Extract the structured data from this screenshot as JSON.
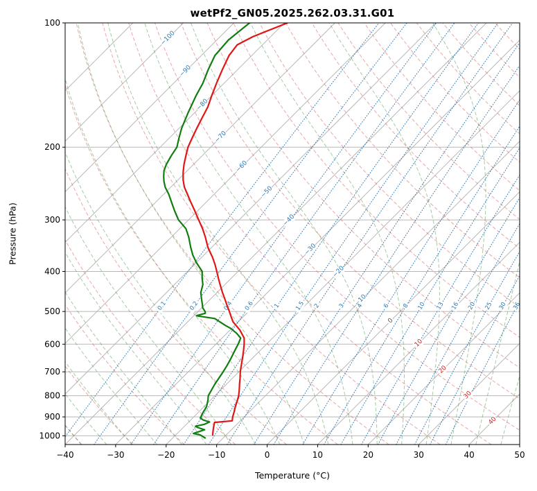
{
  "chart_data": {
    "type": "line",
    "variant": "skew-t-log-p",
    "title": "wetPf2_GN05.2025.262.03.31.G01",
    "xlabel": "Temperature (°C)",
    "ylabel": "Pressure (hPa)",
    "xlim": [
      -40,
      50
    ],
    "plim": [
      100,
      1050
    ],
    "x_ticks": [
      -40,
      -30,
      -20,
      -10,
      0,
      10,
      20,
      30,
      40,
      50
    ],
    "p_ticks": [
      100,
      200,
      300,
      400,
      500,
      600,
      700,
      800,
      900,
      1000
    ],
    "skew_angle_deg": 45,
    "grid": true,
    "legend": "none",
    "isotherms": {
      "min": -110,
      "max": 50,
      "step": 10,
      "labels": [
        {
          "t": -100,
          "p": 109
        },
        {
          "t": -90,
          "p": 131
        },
        {
          "t": -80,
          "p": 158
        },
        {
          "t": -70,
          "p": 189
        },
        {
          "t": -60,
          "p": 223
        },
        {
          "t": -50,
          "p": 257
        },
        {
          "t": -40,
          "p": 301
        },
        {
          "t": -30,
          "p": 354
        },
        {
          "t": -20,
          "p": 401
        },
        {
          "t": -10,
          "p": 470
        },
        {
          "t": 0,
          "p": 527
        },
        {
          "t": 10,
          "p": 597
        },
        {
          "t": 20,
          "p": 692
        },
        {
          "t": 30,
          "p": 798
        },
        {
          "t": 40,
          "p": 921
        }
      ]
    },
    "dry_adiabats": {
      "theta_min_c": -40,
      "theta_max_c": 180,
      "step_c": 10
    },
    "moist_adiabats": {
      "t0_min_c": -40,
      "t0_max_c": 45,
      "step_c": 5
    },
    "mixing_ratio_g_kg": [
      0.1,
      0.2,
      0.4,
      0.6,
      1,
      1.5,
      2,
      3,
      4,
      6,
      8,
      10,
      13,
      16,
      20,
      25,
      30,
      36
    ],
    "mixing_label_pressure": 485,
    "series": [
      {
        "name": "temperature",
        "color": "#e01616",
        "points_p_t": [
          [
            995,
            -12.7
          ],
          [
            970,
            -13.5
          ],
          [
            945,
            -14.3
          ],
          [
            928,
            -14.8
          ],
          [
            920,
            -11.6
          ],
          [
            900,
            -12.3
          ],
          [
            875,
            -13.0
          ],
          [
            850,
            -13.8
          ],
          [
            825,
            -14.5
          ],
          [
            800,
            -15.3
          ],
          [
            775,
            -16.3
          ],
          [
            750,
            -17.4
          ],
          [
            725,
            -18.5
          ],
          [
            700,
            -19.7
          ],
          [
            675,
            -20.8
          ],
          [
            650,
            -21.9
          ],
          [
            625,
            -23.1
          ],
          [
            600,
            -24.4
          ],
          [
            580,
            -25.6
          ],
          [
            555,
            -28.0
          ],
          [
            530,
            -31.0
          ],
          [
            515,
            -32.4
          ],
          [
            500,
            -33.8
          ],
          [
            485,
            -35.3
          ],
          [
            470,
            -36.8
          ],
          [
            450,
            -38.9
          ],
          [
            430,
            -41.0
          ],
          [
            415,
            -42.6
          ],
          [
            400,
            -44.2
          ],
          [
            385,
            -45.9
          ],
          [
            370,
            -47.8
          ],
          [
            350,
            -50.7
          ],
          [
            330,
            -53.3
          ],
          [
            315,
            -55.5
          ],
          [
            300,
            -58.0
          ],
          [
            285,
            -60.6
          ],
          [
            270,
            -63.4
          ],
          [
            260,
            -65.3
          ],
          [
            250,
            -67.3
          ],
          [
            240,
            -69.0
          ],
          [
            230,
            -70.5
          ],
          [
            220,
            -71.9
          ],
          [
            210,
            -73.2
          ],
          [
            200,
            -74.5
          ],
          [
            190,
            -75.5
          ],
          [
            180,
            -76.5
          ],
          [
            170,
            -77.5
          ],
          [
            160,
            -78.5
          ],
          [
            150,
            -80.0
          ],
          [
            140,
            -81.5
          ],
          [
            130,
            -83.0
          ],
          [
            120,
            -84.5
          ],
          [
            113,
            -85.0
          ],
          [
            108,
            -83.5
          ],
          [
            104,
            -81.5
          ],
          [
            100,
            -79.4
          ]
        ]
      },
      {
        "name": "dewpoint",
        "color": "#0f7d0f",
        "points_p_t": [
          [
            1012,
            -13.6
          ],
          [
            995,
            -15.2
          ],
          [
            987,
            -16.8
          ],
          [
            975,
            -15.9
          ],
          [
            967,
            -15.3
          ],
          [
            955,
            -17.1
          ],
          [
            948,
            -17.8
          ],
          [
            938,
            -16.4
          ],
          [
            926,
            -15.9
          ],
          [
            915,
            -17.6
          ],
          [
            905,
            -18.5
          ],
          [
            880,
            -19.0
          ],
          [
            850,
            -19.5
          ],
          [
            820,
            -20.5
          ],
          [
            800,
            -21.3
          ],
          [
            775,
            -21.8
          ],
          [
            750,
            -22.3
          ],
          [
            725,
            -22.7
          ],
          [
            700,
            -23.1
          ],
          [
            675,
            -23.6
          ],
          [
            650,
            -24.2
          ],
          [
            625,
            -24.9
          ],
          [
            600,
            -25.6
          ],
          [
            580,
            -26.3
          ],
          [
            565,
            -28.0
          ],
          [
            550,
            -30.1
          ],
          [
            540,
            -31.9
          ],
          [
            530,
            -33.6
          ],
          [
            520,
            -35.3
          ],
          [
            512,
            -39.5
          ],
          [
            505,
            -38.2
          ],
          [
            500,
            -38.6
          ],
          [
            490,
            -39.8
          ],
          [
            480,
            -40.6
          ],
          [
            465,
            -41.9
          ],
          [
            450,
            -43.2
          ],
          [
            430,
            -44.4
          ],
          [
            415,
            -45.8
          ],
          [
            400,
            -47.1
          ],
          [
            380,
            -50.1
          ],
          [
            365,
            -52.2
          ],
          [
            350,
            -54.1
          ],
          [
            330,
            -56.6
          ],
          [
            315,
            -58.8
          ],
          [
            300,
            -62.0
          ],
          [
            285,
            -64.6
          ],
          [
            270,
            -67.2
          ],
          [
            260,
            -69.0
          ],
          [
            250,
            -71.1
          ],
          [
            242,
            -72.5
          ],
          [
            235,
            -73.6
          ],
          [
            228,
            -74.6
          ],
          [
            220,
            -75.4
          ],
          [
            210,
            -76.1
          ],
          [
            200,
            -76.7
          ],
          [
            190,
            -78.1
          ],
          [
            180,
            -79.5
          ],
          [
            165,
            -81.3
          ],
          [
            150,
            -83.1
          ],
          [
            140,
            -84.2
          ],
          [
            130,
            -85.8
          ],
          [
            120,
            -87.3
          ],
          [
            110,
            -87.7
          ],
          [
            100,
            -86.9
          ]
        ]
      }
    ],
    "colors": {
      "isotherm": "#b7b7b7",
      "pressure_grid": "#b7b7b7",
      "dry_adiabat": "rgba(208,82,82,0.5)",
      "moist_adiabat": "rgba(50,140,50,0.45)",
      "mixing": "rgba(30,110,175,0.9)",
      "label_cold": "#2878b4",
      "label_zero": "#555555",
      "label_warm": "#cc2222",
      "spine": "#000000",
      "tick_text": "#000000"
    }
  }
}
